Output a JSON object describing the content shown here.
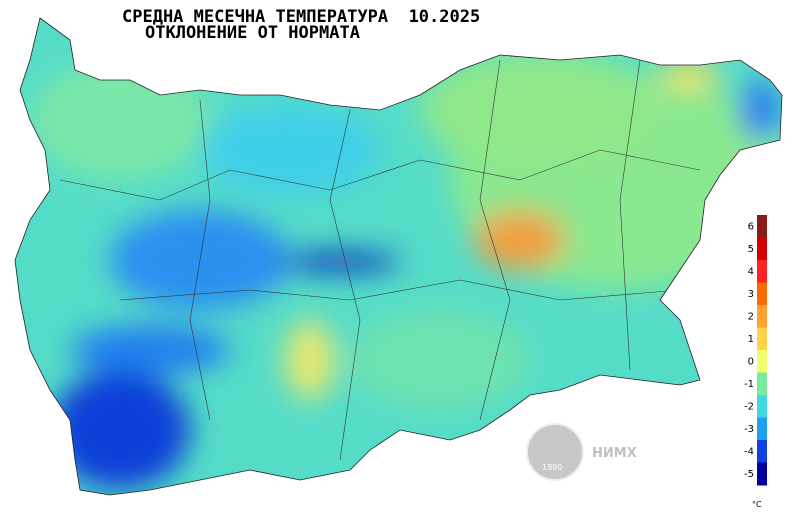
{
  "title": "СРЕДНА МЕСЕЧНА ТЕМПЕРАТУРА  10.2025",
  "subtitle": "ОТКЛОНЕНИЕ ОТ НОРМАТА",
  "legend": {
    "ticks": [
      6,
      5,
      4,
      3,
      2,
      1,
      0,
      -1,
      -2,
      -3,
      -4,
      -5
    ],
    "colors": [
      "#8b1a1a",
      "#d40000",
      "#ff2020",
      "#ff6a00",
      "#ffa030",
      "#ffd24a",
      "#f0ff70",
      "#7be8a0",
      "#40d8e0",
      "#20a0f0",
      "#1040e0",
      "#0000a0"
    ],
    "unit": "°C"
  },
  "logo": {
    "year": "1890",
    "text": "НИМХ"
  }
}
